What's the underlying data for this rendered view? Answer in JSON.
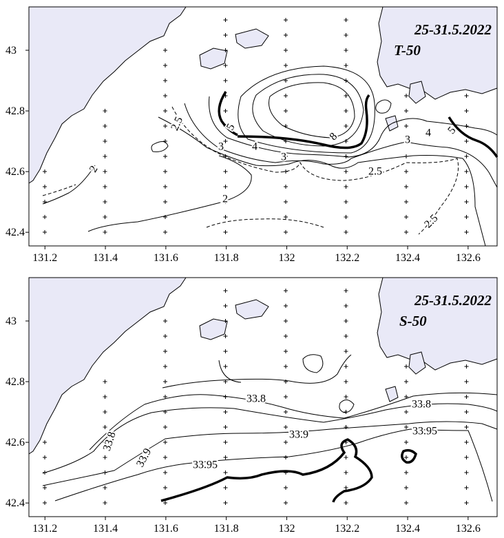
{
  "panels": [
    {
      "title": "25-31.5.2022",
      "subtitle": "T-50",
      "xlim": [
        131.147,
        132.696
      ],
      "ylim": [
        42.355,
        43.143
      ],
      "xticks": [
        131.2,
        131.4,
        131.6,
        131.8,
        132,
        132.2,
        132.4,
        132.6
      ],
      "yticks": [
        42.4,
        42.6,
        42.8,
        43
      ],
      "contour_labels": [
        2.5,
        5,
        3,
        4,
        3,
        8,
        2.5,
        3,
        4,
        5,
        2,
        2,
        2.5
      ]
    },
    {
      "title": "25-31.5.2022",
      "subtitle": "S-50",
      "xlim": [
        131.147,
        132.696
      ],
      "ylim": [
        42.355,
        43.143
      ],
      "xticks": [
        131.2,
        131.4,
        131.6,
        131.8,
        132,
        132.2,
        132.4,
        132.6
      ],
      "yticks": [
        42.4,
        42.6,
        42.8,
        43
      ],
      "contour_labels": [
        33.8,
        33.8,
        33.9,
        33.95,
        33.8,
        33.9,
        33.95
      ]
    }
  ]
}
